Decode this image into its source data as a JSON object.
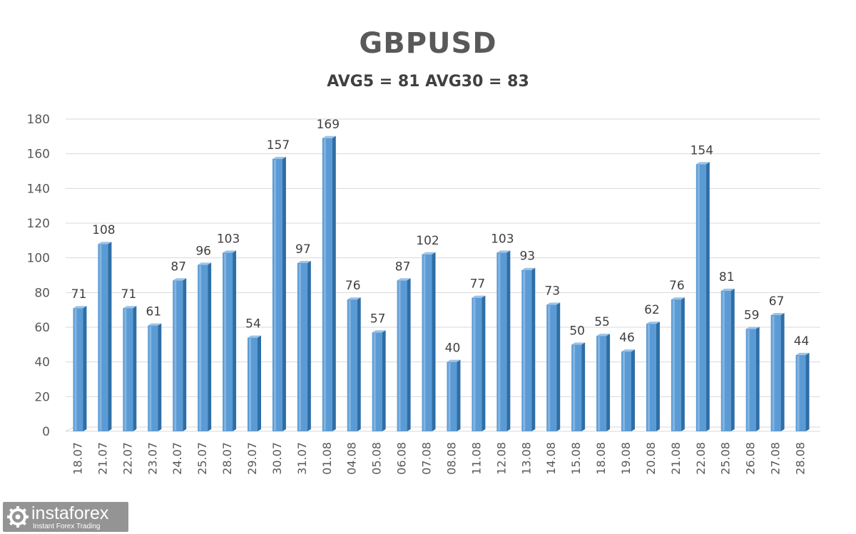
{
  "chart_data": {
    "type": "bar",
    "title": "GBPUSD",
    "subtitle": "AVG5 = 81 AVG30 = 83",
    "categories": [
      "18.07",
      "21.07",
      "22.07",
      "23.07",
      "24.07",
      "25.07",
      "28.07",
      "29.07",
      "30.07",
      "31.07",
      "01.08",
      "04.08",
      "05.08",
      "06.08",
      "07.08",
      "08.08",
      "11.08",
      "12.08",
      "13.08",
      "14.08",
      "15.08",
      "18.08",
      "19.08",
      "20.08",
      "21.08",
      "22.08",
      "25.08",
      "26.08",
      "27.08",
      "28.08"
    ],
    "values": [
      71,
      108,
      71,
      61,
      87,
      96,
      103,
      54,
      157,
      97,
      169,
      76,
      57,
      87,
      102,
      40,
      77,
      103,
      93,
      73,
      50,
      55,
      46,
      62,
      76,
      154,
      81,
      59,
      67,
      44
    ],
    "ylim": [
      0,
      180
    ],
    "yticks": [
      0,
      20,
      40,
      60,
      80,
      100,
      120,
      140,
      160,
      180
    ],
    "grid": true,
    "colors": {
      "bar": "#5b9bd5",
      "bar_side": "#2e6ea6",
      "bar_top": "#9cc3e8",
      "grid": "#d9d9d9",
      "text": "#595959"
    }
  },
  "watermark": {
    "name": "instaforex",
    "tagline": "Instant Forex Trading",
    "icon": "instaforex-gear-logo-icon"
  }
}
